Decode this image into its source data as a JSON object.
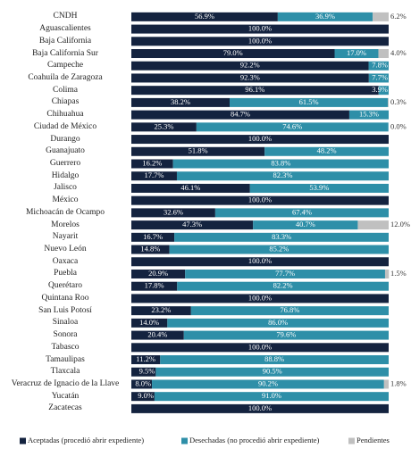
{
  "chart_data": {
    "type": "stacked_barh",
    "categories": [
      "CNDH",
      "Aguascalientes",
      "Baja California",
      "Baja California Sur",
      "Campeche",
      "Coahuila de Zaragoza",
      "Colima",
      "Chiapas",
      "Chihuahua",
      "Ciudad de México",
      "Durango",
      "Guanajuato",
      "Guerrero",
      "Hidalgo",
      "Jalisco",
      "México",
      "Michoacán de Ocampo",
      "Morelos",
      "Nayarit",
      "Nuevo León",
      "Oaxaca",
      "Puebla",
      "Querétaro",
      "Quintana Roo",
      "San Luis Potosí",
      "Sinaloa",
      "Sonora",
      "Tabasco",
      "Tamaulipas",
      "Tlaxcala",
      "Veracruz de Ignacio de la Llave",
      "Yucatán",
      "Zacatecas"
    ],
    "xlim": [
      0,
      100
    ],
    "series": [
      {
        "name": "Aceptadas (procedió abrir expediente)",
        "color": "#14233f",
        "values": [
          56.9,
          100,
          100,
          79.0,
          92.2,
          92.3,
          96.1,
          38.2,
          84.7,
          25.3,
          100,
          51.8,
          16.2,
          17.7,
          46.1,
          100,
          32.6,
          47.3,
          16.7,
          14.8,
          100,
          20.9,
          17.8,
          100,
          23.2,
          14.0,
          20.4,
          100,
          11.2,
          9.5,
          8.0,
          9.0,
          100
        ],
        "value_labels": [
          "56.9%",
          "100.0%",
          "100.0%",
          "79.0%",
          "92.2%",
          "92.3%",
          "96.1%",
          "38.2%",
          "84.7%",
          "25.3%",
          "100.0%",
          "51.8%",
          "16.2%",
          "17.7%",
          "46.1%",
          "100.0%",
          "32.6%",
          "47.3%",
          "16.7%",
          "14.8%",
          "100.0%",
          "20.9%",
          "17.8%",
          "100.0%",
          "23.2%",
          "14.0%",
          "20.4%",
          "100.0%",
          "11.2%",
          "9.5%",
          "8.0%",
          "9.0%",
          "100.0%"
        ]
      },
      {
        "name": "Desechadas (no procedió abrir expediente)",
        "color": "#2e8fa8",
        "values": [
          36.9,
          null,
          null,
          17.0,
          7.8,
          7.7,
          3.9,
          61.5,
          15.3,
          74.6,
          null,
          48.2,
          83.8,
          82.3,
          53.9,
          null,
          67.4,
          40.7,
          83.3,
          85.2,
          null,
          77.7,
          82.2,
          null,
          76.8,
          86.0,
          79.6,
          null,
          88.8,
          90.5,
          90.2,
          91.0,
          null
        ],
        "value_labels": [
          "36.9%",
          null,
          null,
          "17.0%",
          "7.8%",
          "7.7%",
          "3.9%",
          "61.5%",
          "15.3%",
          "74.6%",
          null,
          "48.2%",
          "83.8%",
          "82.3%",
          "53.9%",
          null,
          "67.4%",
          "40.7%",
          "83.3%",
          "85.2%",
          null,
          "77.7%",
          "82.2%",
          null,
          "76.8%",
          "86.0%",
          "79.6%",
          null,
          "88.8%",
          "90.5%",
          "90.2%",
          "91.0%",
          null
        ]
      },
      {
        "name": "Pendientes",
        "color": "#c0c0c0",
        "values": [
          6.2,
          null,
          null,
          4.0,
          null,
          null,
          null,
          0.3,
          null,
          0.0,
          null,
          null,
          null,
          null,
          null,
          null,
          null,
          12.0,
          null,
          null,
          null,
          1.5,
          null,
          null,
          null,
          null,
          null,
          null,
          null,
          null,
          1.8,
          null,
          null
        ],
        "value_labels": [
          "6.2%",
          null,
          null,
          "4.0%",
          null,
          null,
          null,
          "0.3%",
          null,
          "0.0%",
          null,
          null,
          null,
          null,
          null,
          null,
          null,
          "12.0%",
          null,
          null,
          null,
          "1.5%",
          null,
          null,
          null,
          null,
          null,
          null,
          null,
          null,
          "1.8%",
          null,
          null
        ]
      }
    ]
  }
}
